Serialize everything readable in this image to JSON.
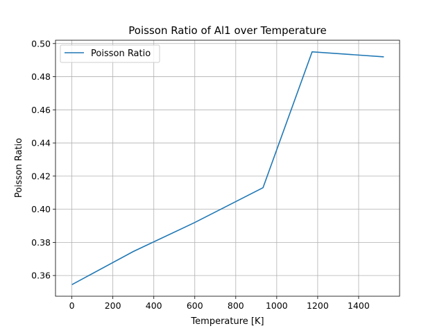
{
  "chart_data": {
    "type": "line",
    "title": "Poisson Ratio of Al1 over Temperature",
    "xlabel": "Temperature [K]",
    "ylabel": "Poisson Ratio",
    "xlim": [
      -80,
      1600
    ],
    "ylim": [
      0.3475,
      0.502
    ],
    "xticks": [
      0,
      200,
      400,
      600,
      800,
      1000,
      1200,
      1400
    ],
    "yticks": [
      0.36,
      0.38,
      0.4,
      0.42,
      0.44,
      0.46,
      0.48,
      0.5
    ],
    "ytick_labels": [
      "0.36",
      "0.38",
      "0.40",
      "0.42",
      "0.44",
      "0.46",
      "0.48",
      "0.50"
    ],
    "grid": true,
    "legend_position": "top-left",
    "series": [
      {
        "name": "Poisson Ratio",
        "color": "#1f77b4",
        "x": [
          0,
          300,
          600,
          933,
          1173,
          1523
        ],
        "y": [
          0.3545,
          0.3745,
          0.392,
          0.413,
          0.495,
          0.492
        ]
      }
    ]
  }
}
